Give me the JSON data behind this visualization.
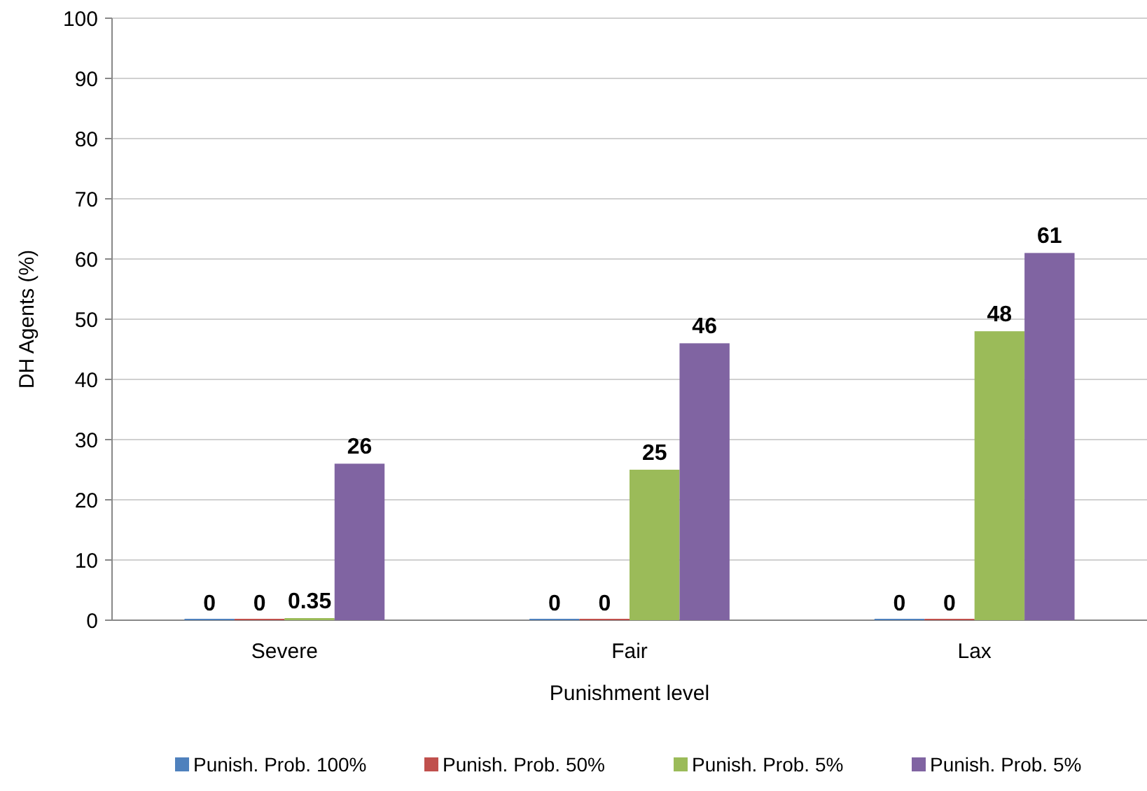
{
  "chart_data": {
    "type": "bar",
    "xlabel": "Punishment level",
    "ylabel": "DH Agents (%)",
    "categories": [
      "Severe",
      "Fair",
      "Lax"
    ],
    "series": [
      {
        "name": "Punish. Prob. 100%",
        "color": "#4f81bd",
        "values": [
          0,
          0,
          0
        ]
      },
      {
        "name": "Punish. Prob. 50%",
        "color": "#c0504d",
        "values": [
          0,
          0,
          0
        ]
      },
      {
        "name": "Punish. Prob. 5%",
        "color": "#9bbb59",
        "values": [
          0.35,
          25,
          48
        ]
      },
      {
        "name": "Punish. Prob. 5%",
        "color": "#8064a2",
        "values": [
          26,
          46,
          61
        ]
      }
    ],
    "ylim": [
      0,
      100
    ],
    "yticks": [
      0,
      10,
      20,
      30,
      40,
      50,
      60,
      70,
      80,
      90,
      100
    ],
    "grid": "y",
    "legend": "bottom",
    "data_labels": true
  }
}
